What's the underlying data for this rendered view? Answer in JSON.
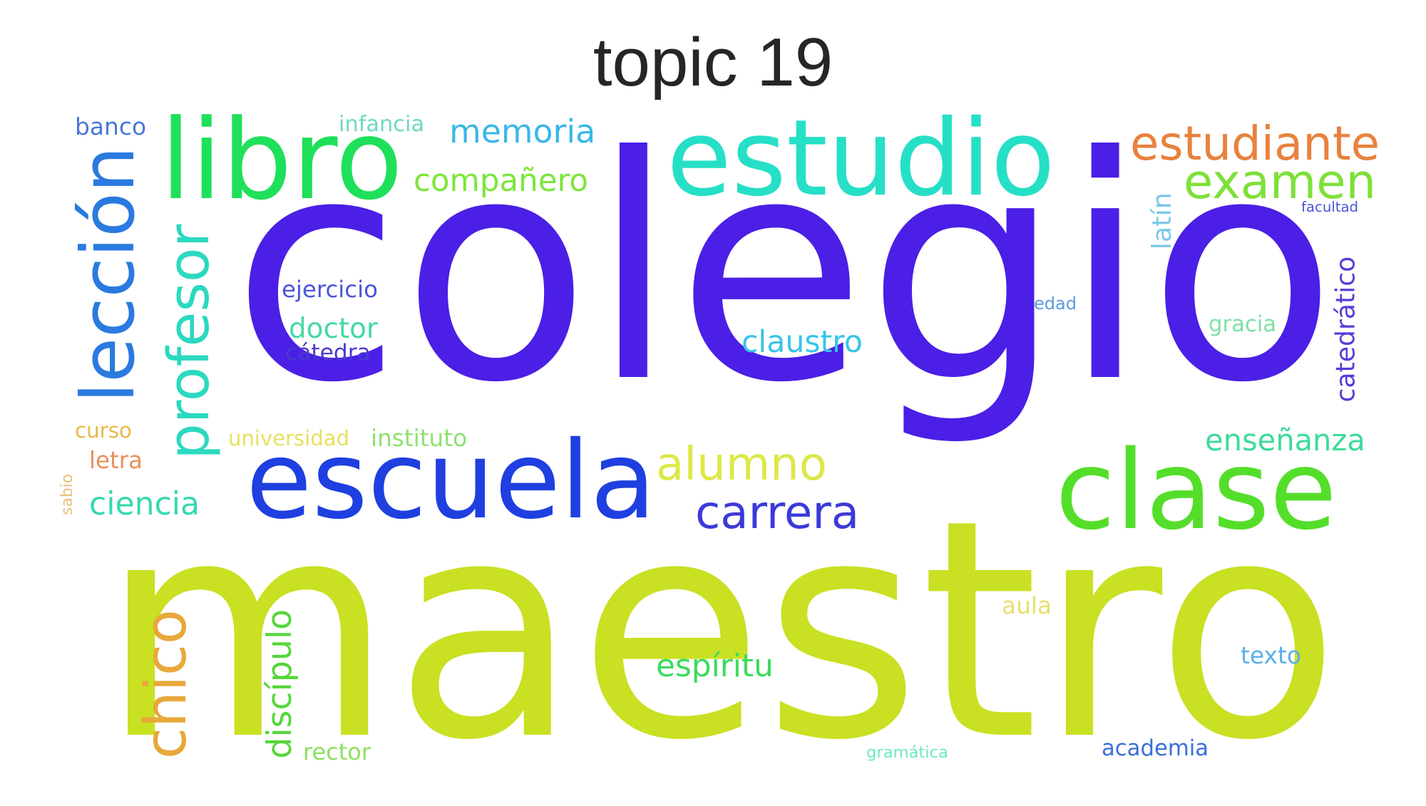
{
  "title": "topic 19",
  "words": [
    {
      "text": "colegio",
      "color": "#4b1fe6",
      "vertical": false
    },
    {
      "text": "maestro",
      "color": "#c9e023",
      "vertical": false
    },
    {
      "text": "escuela",
      "color": "#1f3fe0",
      "vertical": false
    },
    {
      "text": "clase",
      "color": "#54de2a",
      "vertical": false
    },
    {
      "text": "estudio",
      "color": "#26dfc7",
      "vertical": false
    },
    {
      "text": "libro",
      "color": "#1fe05a",
      "vertical": false
    },
    {
      "text": "lección",
      "color": "#2a7ae0",
      "vertical": true
    },
    {
      "text": "profesor",
      "color": "#2bd9bf",
      "vertical": true
    },
    {
      "text": "estudiante",
      "color": "#e8823e",
      "vertical": false
    },
    {
      "text": "examen",
      "color": "#7ee03a",
      "vertical": false
    },
    {
      "text": "memoria",
      "color": "#3ab7e8",
      "vertical": false
    },
    {
      "text": "compañero",
      "color": "#7ce63c",
      "vertical": false
    },
    {
      "text": "alumno",
      "color": "#dde84a",
      "vertical": false
    },
    {
      "text": "carrera",
      "color": "#3b3ad9",
      "vertical": false
    },
    {
      "text": "chico",
      "color": "#e8a83a",
      "vertical": true
    },
    {
      "text": "discípulo",
      "color": "#55d63a",
      "vertical": true
    },
    {
      "text": "espíritu",
      "color": "#3adb5b",
      "vertical": false
    },
    {
      "text": "claustro",
      "color": "#36c5e8",
      "vertical": false
    },
    {
      "text": "enseñanza",
      "color": "#3cdb9a",
      "vertical": false
    },
    {
      "text": "catedrático",
      "color": "#5a3ad9",
      "vertical": true
    },
    {
      "text": "ejercicio",
      "color": "#4a55d9",
      "vertical": false
    },
    {
      "text": "doctor",
      "color": "#45d9a5",
      "vertical": false
    },
    {
      "text": "cátedra",
      "color": "#4a3ad0",
      "vertical": false
    },
    {
      "text": "ciencia",
      "color": "#36d8b0",
      "vertical": false
    },
    {
      "text": "infancia",
      "color": "#6ed8c0",
      "vertical": false
    },
    {
      "text": "banco",
      "color": "#4a78d9",
      "vertical": false
    },
    {
      "text": "latín",
      "color": "#7ac8e8",
      "vertical": true
    },
    {
      "text": "facultad",
      "color": "#4a55d9",
      "vertical": false
    },
    {
      "text": "edad",
      "color": "#5a9ae0",
      "vertical": false
    },
    {
      "text": "gracia",
      "color": "#7ee0a8",
      "vertical": false
    },
    {
      "text": "curso",
      "color": "#e8b84a",
      "vertical": false
    },
    {
      "text": "letra",
      "color": "#e8905a",
      "vertical": false
    },
    {
      "text": "sabio",
      "color": "#e8c07a",
      "vertical": true
    },
    {
      "text": "universidad",
      "color": "#e8e060",
      "vertical": false
    },
    {
      "text": "instituto",
      "color": "#8ee070",
      "vertical": false
    },
    {
      "text": "aula",
      "color": "#e8e070",
      "vertical": false
    },
    {
      "text": "texto",
      "color": "#5ab0e8",
      "vertical": false
    },
    {
      "text": "academia",
      "color": "#3a70d9",
      "vertical": false
    },
    {
      "text": "rector",
      "color": "#8ee060",
      "vertical": false
    },
    {
      "text": "gramática",
      "color": "#6ee8c0",
      "vertical": false
    }
  ]
}
